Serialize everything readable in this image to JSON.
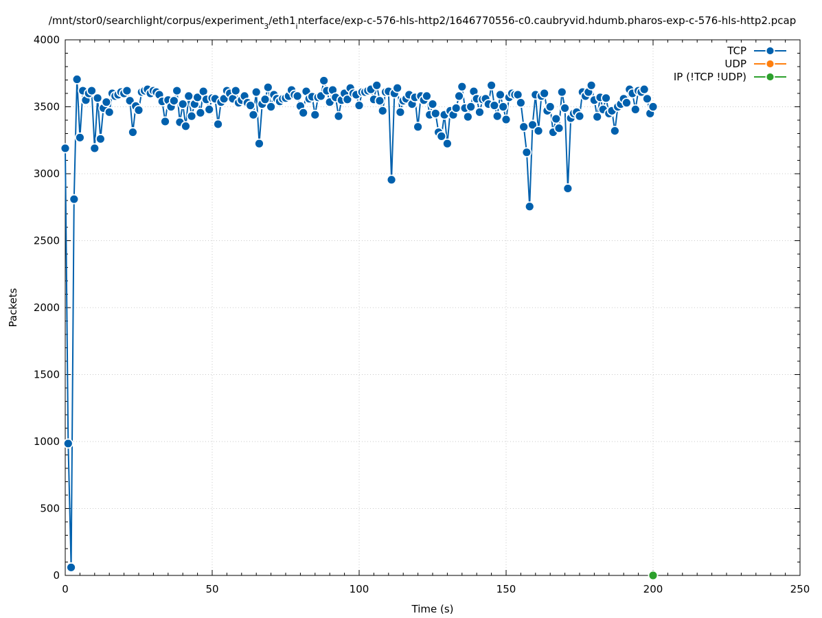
{
  "chart_data": {
    "type": "line",
    "title_parts": {
      "before": "/mnt/stor0/searchlight/corpus/experiment",
      "sub1": "3",
      "middle": "/eth1",
      "sub2": "i",
      "after": "nterface/exp-c-576-hls-http2/1646770556-c0.caubryvid.hdumb.pharos-exp-c-576-hls-http2.pcap"
    },
    "xlabel": "Time (s)",
    "ylabel": "Packets",
    "xlim": [
      0,
      250
    ],
    "ylim": [
      0,
      4000
    ],
    "xticks": [
      0,
      50,
      100,
      150,
      200,
      250
    ],
    "yticks": [
      0,
      500,
      1000,
      1500,
      2000,
      2500,
      3000,
      3500,
      4000
    ],
    "grid": true,
    "legend_position": "top-right",
    "series": [
      {
        "name": "TCP",
        "color": "#0060ad",
        "x": [
          0,
          1,
          2,
          3,
          4,
          5,
          6,
          7,
          8,
          9,
          10,
          11,
          12,
          13,
          14,
          15,
          16,
          17,
          18,
          19,
          20,
          21,
          22,
          23,
          24,
          25,
          26,
          27,
          28,
          29,
          30,
          31,
          32,
          33,
          34,
          35,
          36,
          37,
          38,
          39,
          40,
          41,
          42,
          43,
          44,
          45,
          46,
          47,
          48,
          49,
          50,
          51,
          52,
          53,
          54,
          55,
          56,
          57,
          58,
          59,
          60,
          61,
          62,
          63,
          64,
          65,
          66,
          67,
          68,
          69,
          70,
          71,
          72,
          73,
          74,
          75,
          76,
          77,
          78,
          79,
          80,
          81,
          82,
          83,
          84,
          85,
          86,
          87,
          88,
          89,
          90,
          91,
          92,
          93,
          94,
          95,
          96,
          97,
          98,
          99,
          100,
          101,
          102,
          103,
          104,
          105,
          106,
          107,
          108,
          109,
          110,
          111,
          112,
          113,
          114,
          115,
          116,
          117,
          118,
          119,
          120,
          121,
          122,
          123,
          124,
          125,
          126,
          127,
          128,
          129,
          130,
          131,
          132,
          133,
          134,
          135,
          136,
          137,
          138,
          139,
          140,
          141,
          142,
          143,
          144,
          145,
          146,
          147,
          148,
          149,
          150,
          151,
          152,
          153,
          154,
          155,
          156,
          157,
          158,
          159,
          160,
          161,
          162,
          163,
          164,
          165,
          166,
          167,
          168,
          169,
          170,
          171,
          172,
          173,
          174,
          175,
          176,
          177,
          178,
          179,
          180,
          181,
          182,
          183,
          184,
          185,
          186,
          187,
          188,
          189,
          190,
          191,
          192,
          193,
          194,
          195,
          196,
          197,
          198,
          199,
          200
        ],
        "y": [
          3190,
          985,
          60,
          2810,
          3705,
          3270,
          3620,
          3550,
          3600,
          3620,
          3190,
          3565,
          3260,
          3490,
          3535,
          3460,
          3600,
          3580,
          3590,
          3610,
          3600,
          3620,
          3545,
          3310,
          3505,
          3475,
          3610,
          3620,
          3630,
          3600,
          3620,
          3610,
          3590,
          3540,
          3390,
          3550,
          3500,
          3545,
          3620,
          3385,
          3520,
          3355,
          3580,
          3430,
          3520,
          3570,
          3455,
          3615,
          3555,
          3480,
          3565,
          3560,
          3370,
          3535,
          3560,
          3620,
          3600,
          3560,
          3620,
          3530,
          3550,
          3580,
          3530,
          3510,
          3440,
          3610,
          3225,
          3520,
          3555,
          3645,
          3500,
          3590,
          3560,
          3540,
          3560,
          3565,
          3580,
          3625,
          3590,
          3580,
          3505,
          3455,
          3615,
          3560,
          3575,
          3440,
          3570,
          3580,
          3695,
          3620,
          3535,
          3625,
          3570,
          3430,
          3550,
          3600,
          3555,
          3640,
          3600,
          3590,
          3510,
          3610,
          3610,
          3620,
          3630,
          3555,
          3660,
          3545,
          3470,
          3610,
          3615,
          2955,
          3600,
          3640,
          3460,
          3545,
          3560,
          3590,
          3520,
          3570,
          3350,
          3580,
          3550,
          3580,
          3440,
          3520,
          3450,
          3310,
          3280,
          3440,
          3225,
          3470,
          3440,
          3490,
          3580,
          3650,
          3490,
          3425,
          3500,
          3615,
          3560,
          3460,
          3555,
          3560,
          3520,
          3660,
          3510,
          3430,
          3590,
          3500,
          3405,
          3570,
          3600,
          3590,
          3590,
          3530,
          3350,
          3160,
          2755,
          3365,
          3590,
          3320,
          3580,
          3600,
          3470,
          3500,
          3310,
          3410,
          3340,
          3610,
          3490,
          2890,
          3415,
          3450,
          3460,
          3430,
          3610,
          3580,
          3610,
          3660,
          3550,
          3425,
          3570,
          3480,
          3565,
          3450,
          3470,
          3320,
          3500,
          3520,
          3560,
          3530,
          3630,
          3600,
          3480,
          3620,
          3610,
          3630,
          3560,
          3450,
          3500
        ]
      },
      {
        "name": "UDP",
        "color": "#ff7f0e",
        "x": [],
        "y": []
      },
      {
        "name": "IP (!TCP  !UDP)",
        "color": "#2ca02c",
        "x": [
          200
        ],
        "y": [
          0
        ]
      }
    ]
  }
}
